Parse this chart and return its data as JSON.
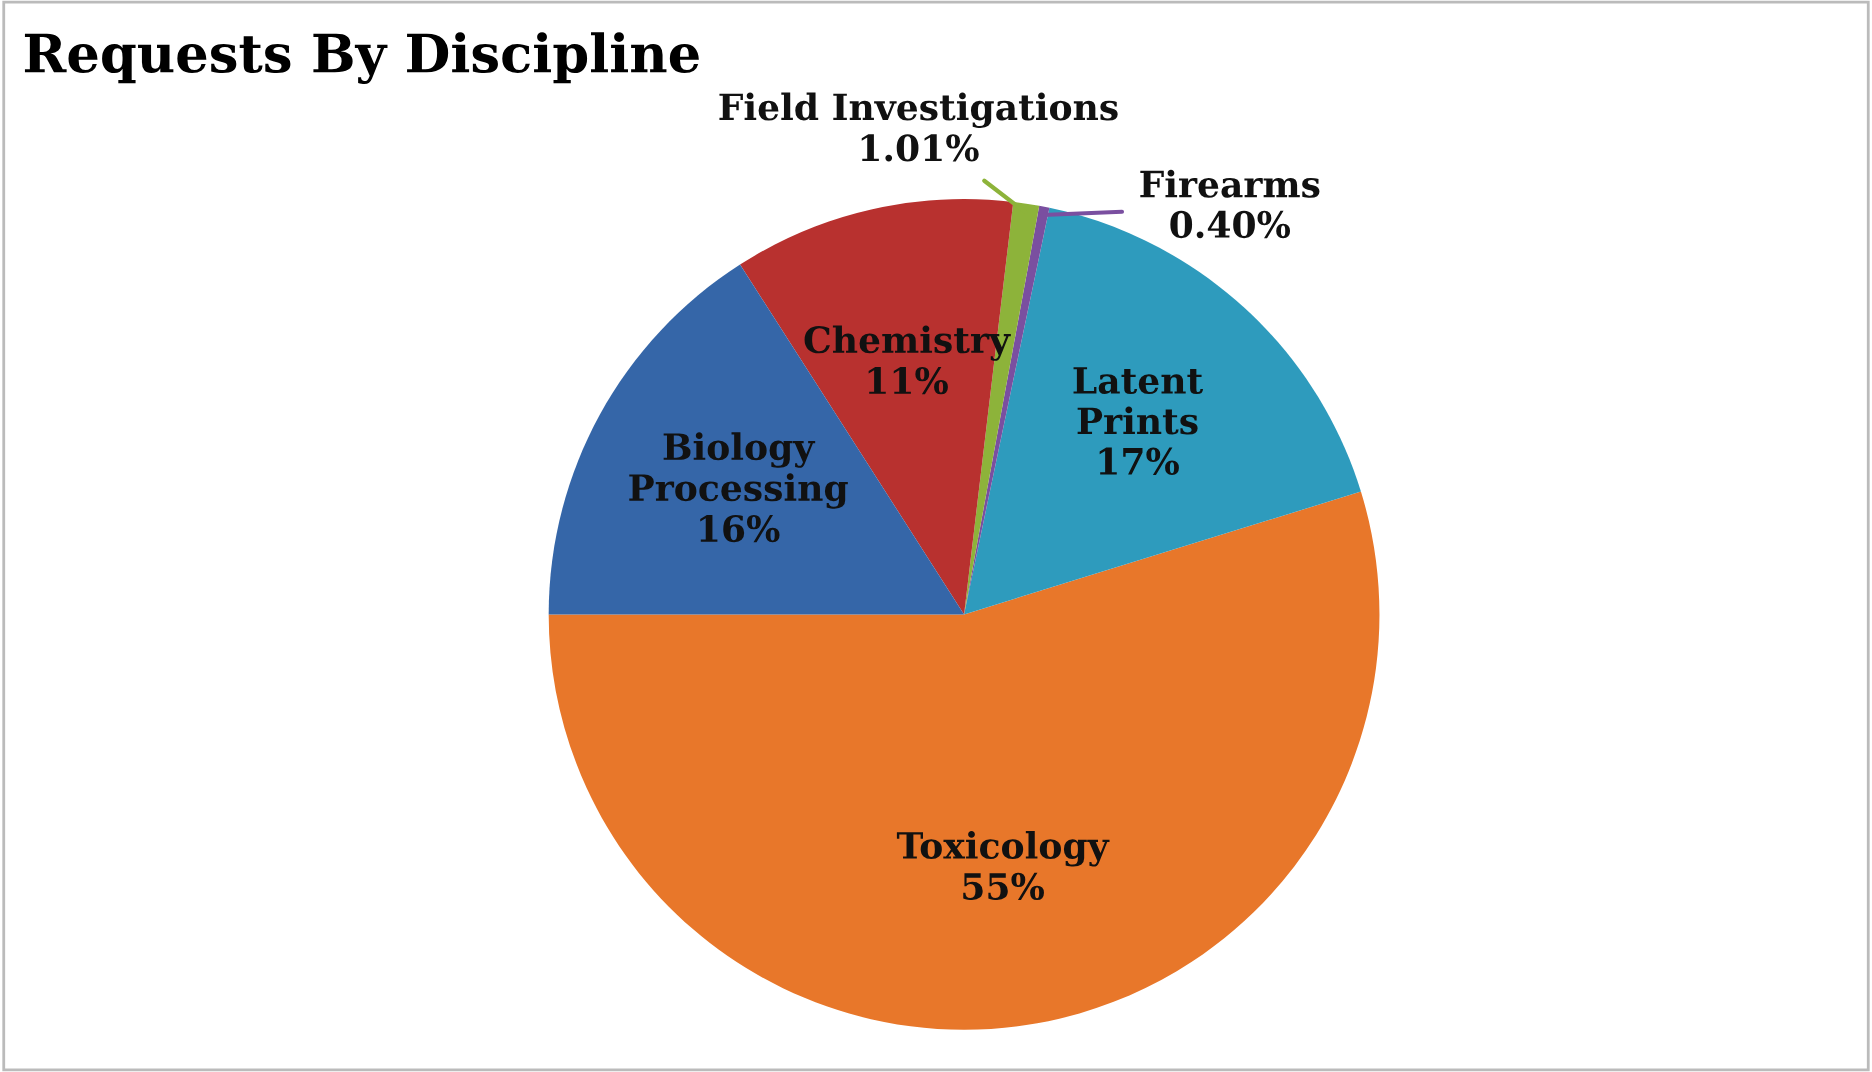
{
  "chart_data": {
    "type": "pie",
    "title": "Requests By Discipline",
    "categories": [
      "Toxicology",
      "Latent Prints",
      "Firearms",
      "Field Investigations",
      "Chemistry",
      "Biology Processing"
    ],
    "values": [
      55,
      17,
      0.4,
      1.01,
      11,
      16
    ],
    "value_labels": [
      "55%",
      "17%",
      "0.40%",
      "1.01%",
      "11%",
      "16%"
    ],
    "colors": [
      "#e8772a",
      "#2e9bbd",
      "#7a4fa0",
      "#8db33a",
      "#b8312f",
      "#3566a8"
    ],
    "legend": false
  }
}
